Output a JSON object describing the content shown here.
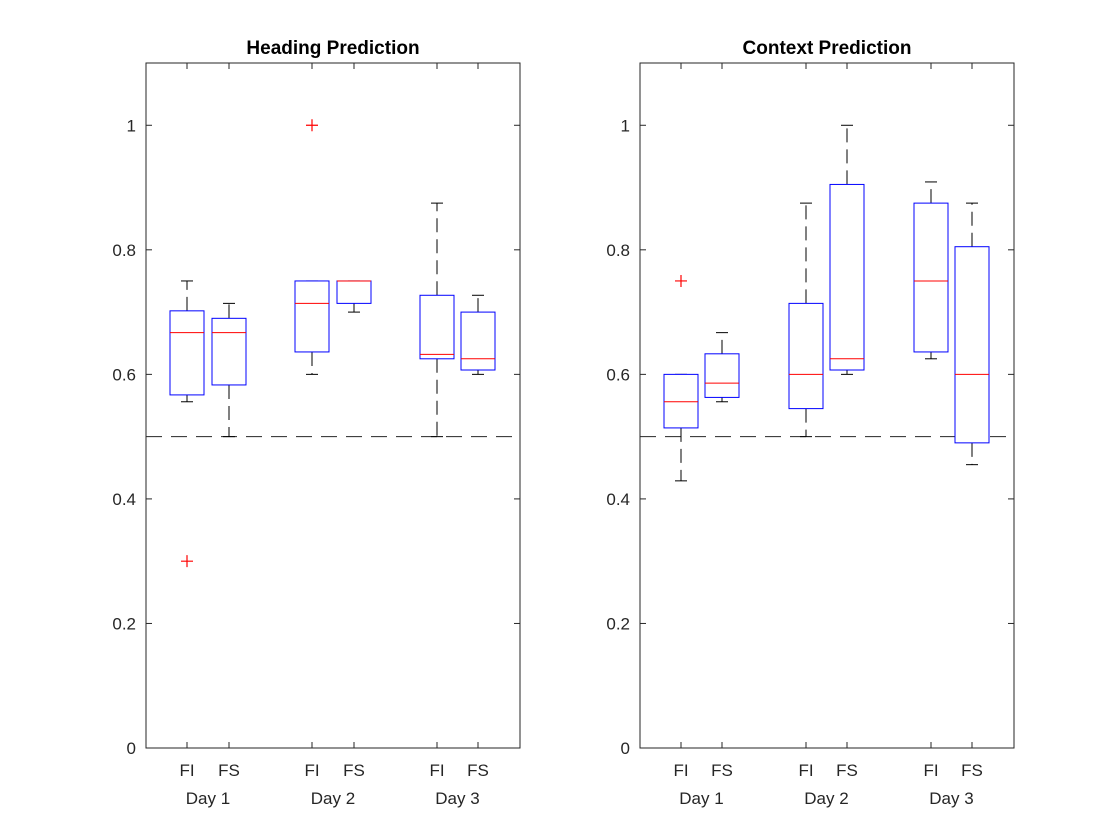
{
  "chart_data": [
    {
      "type": "box",
      "title": "Heading Prediction",
      "xlabel": "",
      "ylabel": "",
      "ylim": [
        0,
        1.1
      ],
      "yticks": [
        0,
        0.2,
        0.4,
        0.6,
        0.8,
        1
      ],
      "ytick_labels": [
        "0",
        "0.2",
        "0.4",
        "0.6",
        "0.8",
        "1"
      ],
      "reference_line": 0.5,
      "grid": false,
      "groups": [
        "Day 1",
        "Day 2",
        "Day 3"
      ],
      "boxes": [
        {
          "label": "FI",
          "group": "Day 1",
          "q1": 0.567,
          "median": 0.667,
          "q3": 0.702,
          "whisker_low": 0.556,
          "whisker_high": 0.75,
          "outliers": [
            0.3
          ]
        },
        {
          "label": "FS",
          "group": "Day 1",
          "q1": 0.583,
          "median": 0.667,
          "q3": 0.69,
          "whisker_low": 0.5,
          "whisker_high": 0.714,
          "outliers": []
        },
        {
          "label": "FI",
          "group": "Day 2",
          "q1": 0.636,
          "median": 0.714,
          "q3": 0.75,
          "whisker_low": 0.6,
          "whisker_high": 0.75,
          "outliers": [
            1.0
          ]
        },
        {
          "label": "FS",
          "group": "Day 2",
          "q1": 0.714,
          "median": 0.75,
          "q3": 0.75,
          "whisker_low": 0.7,
          "whisker_high": 0.75,
          "outliers": []
        },
        {
          "label": "FI",
          "group": "Day 3",
          "q1": 0.625,
          "median": 0.632,
          "q3": 0.727,
          "whisker_low": 0.5,
          "whisker_high": 0.875,
          "outliers": []
        },
        {
          "label": "FS",
          "group": "Day 3",
          "q1": 0.607,
          "median": 0.625,
          "q3": 0.7,
          "whisker_low": 0.6,
          "whisker_high": 0.727,
          "outliers": []
        }
      ]
    },
    {
      "type": "box",
      "title": "Context Prediction",
      "xlabel": "",
      "ylabel": "",
      "ylim": [
        0,
        1.1
      ],
      "yticks": [
        0,
        0.2,
        0.4,
        0.6,
        0.8,
        1
      ],
      "ytick_labels": [
        "0",
        "0.2",
        "0.4",
        "0.6",
        "0.8",
        "1"
      ],
      "reference_line": 0.5,
      "grid": false,
      "groups": [
        "Day 1",
        "Day 2",
        "Day 3"
      ],
      "boxes": [
        {
          "label": "FI",
          "group": "Day 1",
          "q1": 0.514,
          "median": 0.556,
          "q3": 0.6,
          "whisker_low": 0.429,
          "whisker_high": 0.6,
          "outliers": [
            0.75
          ]
        },
        {
          "label": "FS",
          "group": "Day 1",
          "q1": 0.563,
          "median": 0.586,
          "q3": 0.633,
          "whisker_low": 0.556,
          "whisker_high": 0.667,
          "outliers": []
        },
        {
          "label": "FI",
          "group": "Day 2",
          "q1": 0.545,
          "median": 0.6,
          "q3": 0.714,
          "whisker_low": 0.5,
          "whisker_high": 0.875,
          "outliers": []
        },
        {
          "label": "FS",
          "group": "Day 2",
          "q1": 0.607,
          "median": 0.625,
          "q3": 0.905,
          "whisker_low": 0.6,
          "whisker_high": 1.0,
          "outliers": []
        },
        {
          "label": "FI",
          "group": "Day 3",
          "q1": 0.636,
          "median": 0.75,
          "q3": 0.875,
          "whisker_low": 0.625,
          "whisker_high": 0.909,
          "outliers": []
        },
        {
          "label": "FS",
          "group": "Day 3",
          "q1": 0.49,
          "median": 0.6,
          "q3": 0.805,
          "whisker_low": 0.455,
          "whisker_high": 0.875,
          "outliers": []
        }
      ]
    }
  ],
  "colors": {
    "box": "#0000ff",
    "median": "#ff0000",
    "outlier": "#ff0000",
    "whisker": "#000000",
    "reference_line": "#262626",
    "axes": "#262626"
  }
}
